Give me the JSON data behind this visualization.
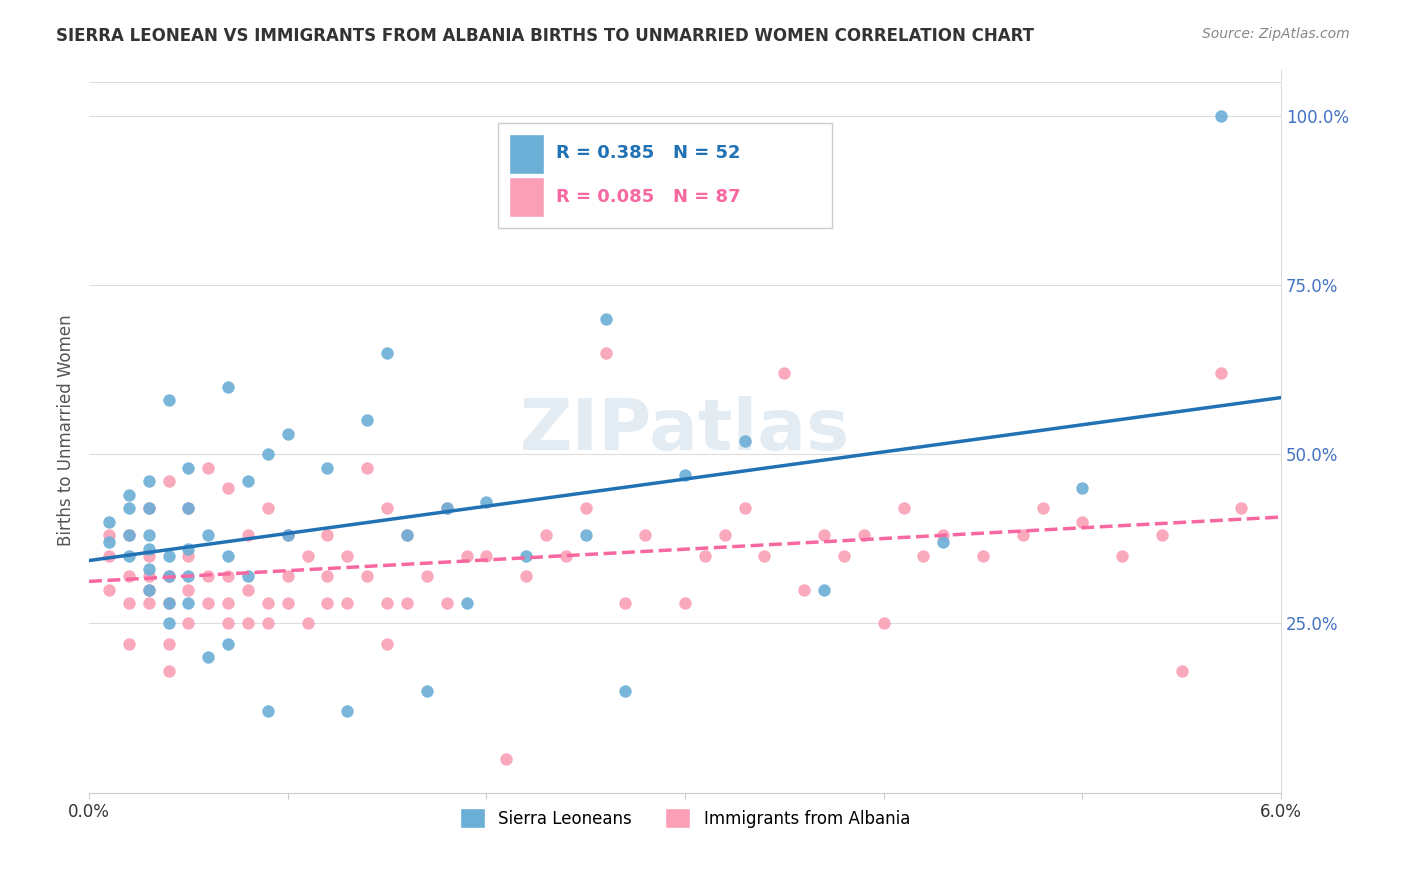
{
  "title": "SIERRA LEONEAN VS IMMIGRANTS FROM ALBANIA BIRTHS TO UNMARRIED WOMEN CORRELATION CHART",
  "source": "Source: ZipAtlas.com",
  "xlabel": "",
  "ylabel": "Births to Unmarried Women",
  "x_min": 0.0,
  "x_max": 0.06,
  "y_min": 0.0,
  "y_max": 1.05,
  "x_ticks": [
    0.0,
    0.01,
    0.02,
    0.03,
    0.04,
    0.05,
    0.06
  ],
  "x_tick_labels": [
    "0.0%",
    "",
    "",
    "",
    "",
    "",
    "6.0%"
  ],
  "y_ticks": [
    0.25,
    0.5,
    0.75,
    1.0
  ],
  "y_tick_labels": [
    "25.0%",
    "50.0%",
    "75.0%",
    "100.0%"
  ],
  "sierra_R": 0.385,
  "sierra_N": 52,
  "albania_R": 0.085,
  "albania_N": 87,
  "sierra_color": "#6baed6",
  "albania_color": "#fa9fb5",
  "sierra_line_color": "#2171b5",
  "albania_line_color": "#f768a1",
  "watermark": "ZIPatlas",
  "watermark_color": "#c8d8e8",
  "sierra_x": [
    0.001,
    0.001,
    0.002,
    0.002,
    0.002,
    0.002,
    0.003,
    0.003,
    0.003,
    0.003,
    0.003,
    0.003,
    0.004,
    0.004,
    0.004,
    0.004,
    0.004,
    0.005,
    0.005,
    0.005,
    0.005,
    0.005,
    0.006,
    0.006,
    0.007,
    0.007,
    0.007,
    0.008,
    0.008,
    0.009,
    0.009,
    0.01,
    0.01,
    0.012,
    0.013,
    0.014,
    0.015,
    0.016,
    0.017,
    0.018,
    0.019,
    0.02,
    0.022,
    0.025,
    0.026,
    0.027,
    0.03,
    0.033,
    0.037,
    0.043,
    0.05,
    0.057
  ],
  "sierra_y": [
    0.37,
    0.4,
    0.35,
    0.38,
    0.42,
    0.44,
    0.3,
    0.33,
    0.36,
    0.38,
    0.42,
    0.46,
    0.25,
    0.28,
    0.32,
    0.35,
    0.58,
    0.28,
    0.32,
    0.36,
    0.42,
    0.48,
    0.2,
    0.38,
    0.22,
    0.35,
    0.6,
    0.32,
    0.46,
    0.12,
    0.5,
    0.38,
    0.53,
    0.48,
    0.12,
    0.55,
    0.65,
    0.38,
    0.15,
    0.42,
    0.28,
    0.43,
    0.35,
    0.38,
    0.7,
    0.15,
    0.47,
    0.52,
    0.3,
    0.37,
    0.45,
    1.0
  ],
  "albania_x": [
    0.001,
    0.001,
    0.001,
    0.002,
    0.002,
    0.002,
    0.002,
    0.003,
    0.003,
    0.003,
    0.003,
    0.003,
    0.004,
    0.004,
    0.004,
    0.004,
    0.004,
    0.005,
    0.005,
    0.005,
    0.005,
    0.006,
    0.006,
    0.006,
    0.007,
    0.007,
    0.007,
    0.007,
    0.008,
    0.008,
    0.008,
    0.009,
    0.009,
    0.009,
    0.01,
    0.01,
    0.01,
    0.011,
    0.011,
    0.012,
    0.012,
    0.012,
    0.013,
    0.013,
    0.014,
    0.014,
    0.015,
    0.015,
    0.015,
    0.016,
    0.016,
    0.017,
    0.018,
    0.018,
    0.019,
    0.02,
    0.021,
    0.022,
    0.023,
    0.024,
    0.025,
    0.026,
    0.027,
    0.028,
    0.03,
    0.031,
    0.032,
    0.033,
    0.034,
    0.035,
    0.036,
    0.037,
    0.038,
    0.039,
    0.04,
    0.041,
    0.042,
    0.043,
    0.045,
    0.047,
    0.048,
    0.05,
    0.052,
    0.054,
    0.055,
    0.057,
    0.058
  ],
  "albania_y": [
    0.3,
    0.35,
    0.38,
    0.22,
    0.28,
    0.32,
    0.38,
    0.28,
    0.3,
    0.32,
    0.35,
    0.42,
    0.18,
    0.22,
    0.28,
    0.32,
    0.46,
    0.25,
    0.3,
    0.35,
    0.42,
    0.28,
    0.32,
    0.48,
    0.25,
    0.28,
    0.32,
    0.45,
    0.25,
    0.3,
    0.38,
    0.25,
    0.28,
    0.42,
    0.28,
    0.32,
    0.38,
    0.25,
    0.35,
    0.28,
    0.32,
    0.38,
    0.28,
    0.35,
    0.32,
    0.48,
    0.22,
    0.28,
    0.42,
    0.28,
    0.38,
    0.32,
    0.28,
    0.42,
    0.35,
    0.35,
    0.05,
    0.32,
    0.38,
    0.35,
    0.42,
    0.65,
    0.28,
    0.38,
    0.28,
    0.35,
    0.38,
    0.42,
    0.35,
    0.62,
    0.3,
    0.38,
    0.35,
    0.38,
    0.25,
    0.42,
    0.35,
    0.38,
    0.35,
    0.38,
    0.42,
    0.4,
    0.35,
    0.38,
    0.18,
    0.62,
    0.42
  ]
}
